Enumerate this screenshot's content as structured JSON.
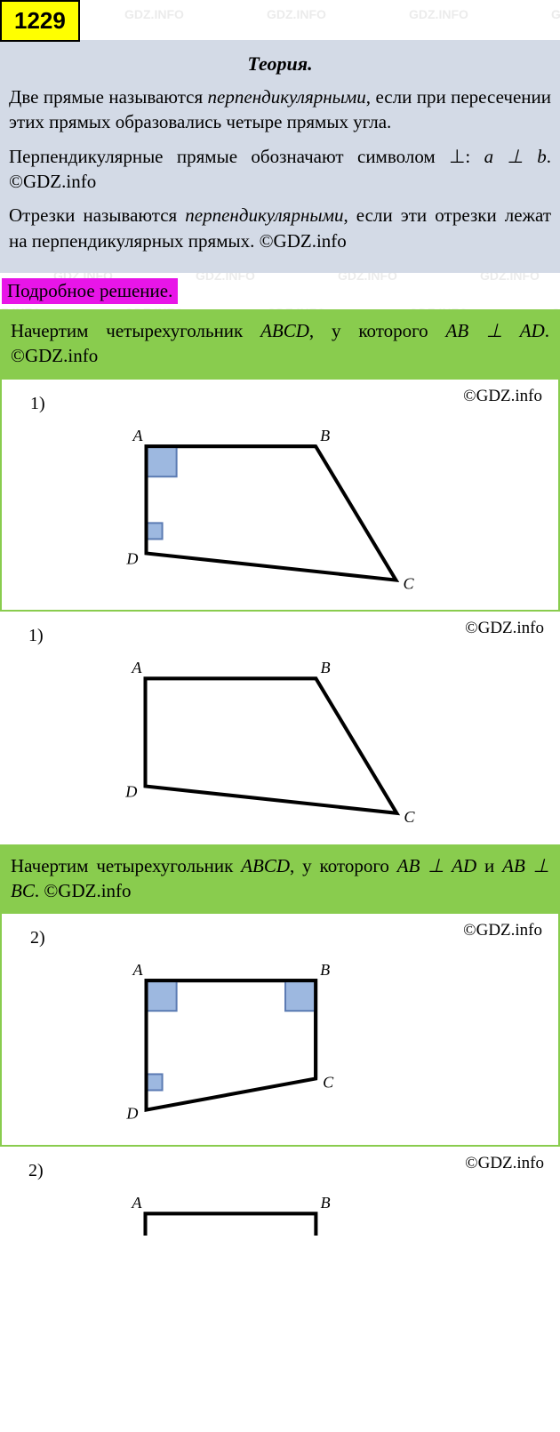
{
  "badge": "1229",
  "theory": {
    "title": "Теория.",
    "p1_a": "Две прямые называются ",
    "p1_em": "перпендикуляр­ными",
    "p1_b": ", если при пересечении этих прямых образовались четыре прямых угла.",
    "p2_a": "Перпендикулярные прямые обозначают символом ⊥: ",
    "p2_em": "a ⊥ b",
    "p2_b": ". ©GDZ.info",
    "p3_a": "Отрезки называются ",
    "p3_em": "перпендикуляр­ными",
    "p3_b": ", если эти отрезки лежат на перпен­дикулярных прямых. ©GDZ.info"
  },
  "solution_label": "Подробное решение.",
  "step1": {
    "text_a": "Начертим четырехугольник ",
    "text_b": "ABCD",
    "text_c": ", у кото­рого ",
    "text_d": "AB ⊥ AD",
    "text_e": ". ©GDZ.info"
  },
  "step2": {
    "text_a": "Начертим четырехугольник ",
    "text_b": "ABCD",
    "text_c": ", у кото­рого ",
    "text_d": "AB ⊥ AD",
    "text_e": " и ",
    "text_f": "AB ⊥ BC",
    "text_g": ". ©GDZ.info"
  },
  "figures": {
    "f1": {
      "num": "1)",
      "copyright": "©GDZ.info",
      "labels": {
        "A": "A",
        "B": "B",
        "C": "C",
        "D": "D"
      },
      "colors": {
        "stroke": "#000000",
        "fill_marker": "#9db8e0",
        "marker_stroke": "#5b7bb3"
      }
    },
    "f1b": {
      "num": "1)",
      "copyright": "©GDZ.info",
      "labels": {
        "A": "A",
        "B": "B",
        "C": "C",
        "D": "D"
      },
      "colors": {
        "stroke": "#000000"
      }
    },
    "f2": {
      "num": "2)",
      "copyright": "©GDZ.info",
      "labels": {
        "A": "A",
        "B": "B",
        "C": "C",
        "D": "D"
      },
      "colors": {
        "stroke": "#000000",
        "fill_marker": "#9db8e0",
        "marker_stroke": "#5b7bb3"
      }
    },
    "f2b": {
      "num": "2)",
      "copyright": "©GDZ.info",
      "labels": {
        "A": "A",
        "B": "B"
      },
      "colors": {
        "stroke": "#000000"
      }
    }
  },
  "watermark_text": "GDZ.INFO",
  "colors": {
    "badge_bg": "#ffff00",
    "theory_bg": "#d3dae6",
    "solution_bg": "#e815e8",
    "step_bg": "#89cc4e",
    "figure_border": "#89cc4e",
    "wm": "#d9d9d9"
  }
}
